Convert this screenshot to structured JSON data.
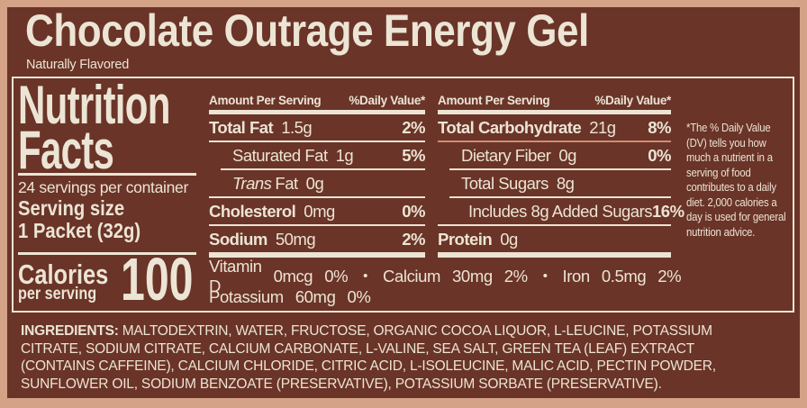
{
  "product": {
    "title": "Chocolate Outrage Energy Gel",
    "subtitle": "Naturally Flavored"
  },
  "panel": {
    "heading_line1": "Nutrition",
    "heading_line2": "Facts",
    "servings_per_container": "24 servings per container",
    "serving_size_label": "Serving size",
    "serving_size_value": "1 Packet (32g)",
    "calories_label": "Calories",
    "calories_sublabel": "per serving",
    "calories_value": "100",
    "amount_header": "Amount Per Serving",
    "dv_header": "%Daily Value*",
    "left_rows": [
      {
        "name": "Total Fat",
        "amount": "1.5g",
        "dv": "2%"
      },
      {
        "name": "Saturated Fat",
        "amount": "1g",
        "dv": "5%"
      },
      {
        "name_italic": "Trans",
        "name": "Fat",
        "amount": "0g",
        "dv": ""
      },
      {
        "name": "Cholesterol",
        "amount": "0mg",
        "dv": "0%"
      },
      {
        "name": "Sodium",
        "amount": "50mg",
        "dv": "2%"
      }
    ],
    "right_rows": [
      {
        "name": "Total Carbohydrate",
        "amount": "21g",
        "dv": "8%"
      },
      {
        "name": "Dietary Fiber",
        "amount": "0g",
        "dv": "0%"
      },
      {
        "name": "Total Sugars",
        "amount": "8g",
        "dv": ""
      },
      {
        "name": "Includes 8g Added Sugars",
        "amount": "",
        "dv": "16%"
      },
      {
        "name": "Protein",
        "amount": "0g",
        "dv": ""
      }
    ],
    "micros": {
      "bullet": "•",
      "vitamin_d": {
        "name": "Vitamin D",
        "amount": "0mcg",
        "dv": "0%"
      },
      "calcium": {
        "name": "Calcium",
        "amount": "30mg",
        "dv": "2%"
      },
      "iron": {
        "name": "Iron",
        "amount": "0.5mg",
        "dv": "2%"
      },
      "potassium": {
        "name": "Potassium",
        "amount": "60mg",
        "dv": "0%"
      }
    },
    "footnote": "*The % Daily Value (DV) tells you how much a nutrient in a serving of food contributes to a daily diet. 2,000 calories a day is used for general nutrition advice."
  },
  "ingredients": {
    "label": "INGREDIENTS:",
    "text": "MALTODEXTRIN, WATER, FRUCTOSE, ORGANIC COCOA LIQUOR, L-LEUCINE, POTASSIUM CITRATE, SODIUM CITRATE, CALCIUM CARBONATE, L-VALINE, SEA SALT, GREEN TEA (LEAF) EXTRACT (CONTAINS CAFFEINE), CALCIUM CHLORIDE, CITRIC ACID, L-ISOLEUCINE, MALIC ACID, PECTIN POWDER, SUNFLOWER OIL, SODIUM BENZOATE (PRESERVATIVE), POTASSIUM SORBATE (PRESERVATIVE)."
  },
  "colors": {
    "background_brown": "#6a3428",
    "border_tan": "#d4a287",
    "text_cream": "#ece4d4",
    "carb_rule_salmon": "#cf8f70"
  }
}
